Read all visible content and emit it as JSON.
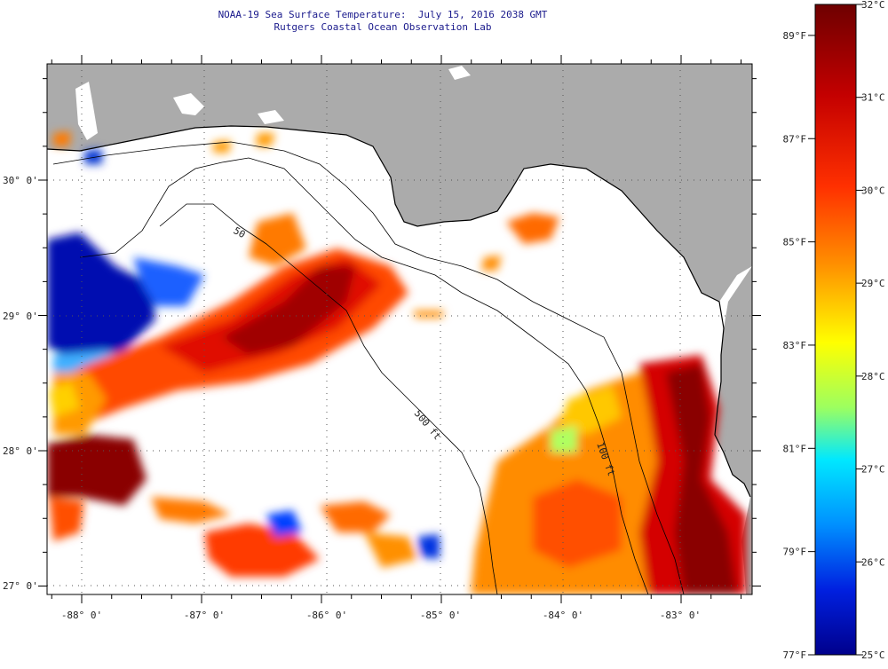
{
  "title": {
    "line1": "NOAA-19 Sea Surface Temperature:  July 15, 2016 2038 GMT",
    "line2": "Rutgers Coastal Ocean Observation Lab"
  },
  "map": {
    "lon_ticks": [
      {
        "value": -88,
        "label": "-88° 0'"
      },
      {
        "value": -87,
        "label": "-87° 0'"
      },
      {
        "value": -86,
        "label": "-86° 0'"
      },
      {
        "value": -85,
        "label": "-85° 0'"
      },
      {
        "value": -84,
        "label": "-84° 0'"
      },
      {
        "value": -83,
        "label": "-83° 0'"
      }
    ],
    "lat_ticks": [
      {
        "value": 30,
        "label": "30° 0'"
      },
      {
        "value": 29,
        "label": "29° 0'"
      },
      {
        "value": 28,
        "label": "28° 0'"
      },
      {
        "value": 27,
        "label": "27° 0'"
      }
    ],
    "isobath_label_1": "50",
    "isobath_label_2": "500 ft",
    "isobath_label_3": "100 ft",
    "land_color": "#ababab",
    "nodata_color": "#ffffff"
  },
  "colorbar": {
    "celsius": [
      {
        "value": 32,
        "label": "32°C"
      },
      {
        "value": 31,
        "label": "31°C"
      },
      {
        "value": 30,
        "label": "30°C"
      },
      {
        "value": 29,
        "label": "29°C"
      },
      {
        "value": 28,
        "label": "28°C"
      },
      {
        "value": 27,
        "label": "27°C"
      },
      {
        "value": 26,
        "label": "26°C"
      },
      {
        "value": 25,
        "label": "25°C"
      }
    ],
    "fahrenheit": [
      {
        "value": 89,
        "label": "89°F"
      },
      {
        "value": 87,
        "label": "87°F"
      },
      {
        "value": 85,
        "label": "85°F"
      },
      {
        "value": 83,
        "label": "83°F"
      },
      {
        "value": 81,
        "label": "81°F"
      },
      {
        "value": 79,
        "label": "79°F"
      },
      {
        "value": 77,
        "label": "77°F"
      }
    ],
    "colors": [
      "#7f0000",
      "#ff0000",
      "#ff8c00",
      "#ffff00",
      "#00ffff",
      "#0064ff",
      "#00008b"
    ]
  }
}
